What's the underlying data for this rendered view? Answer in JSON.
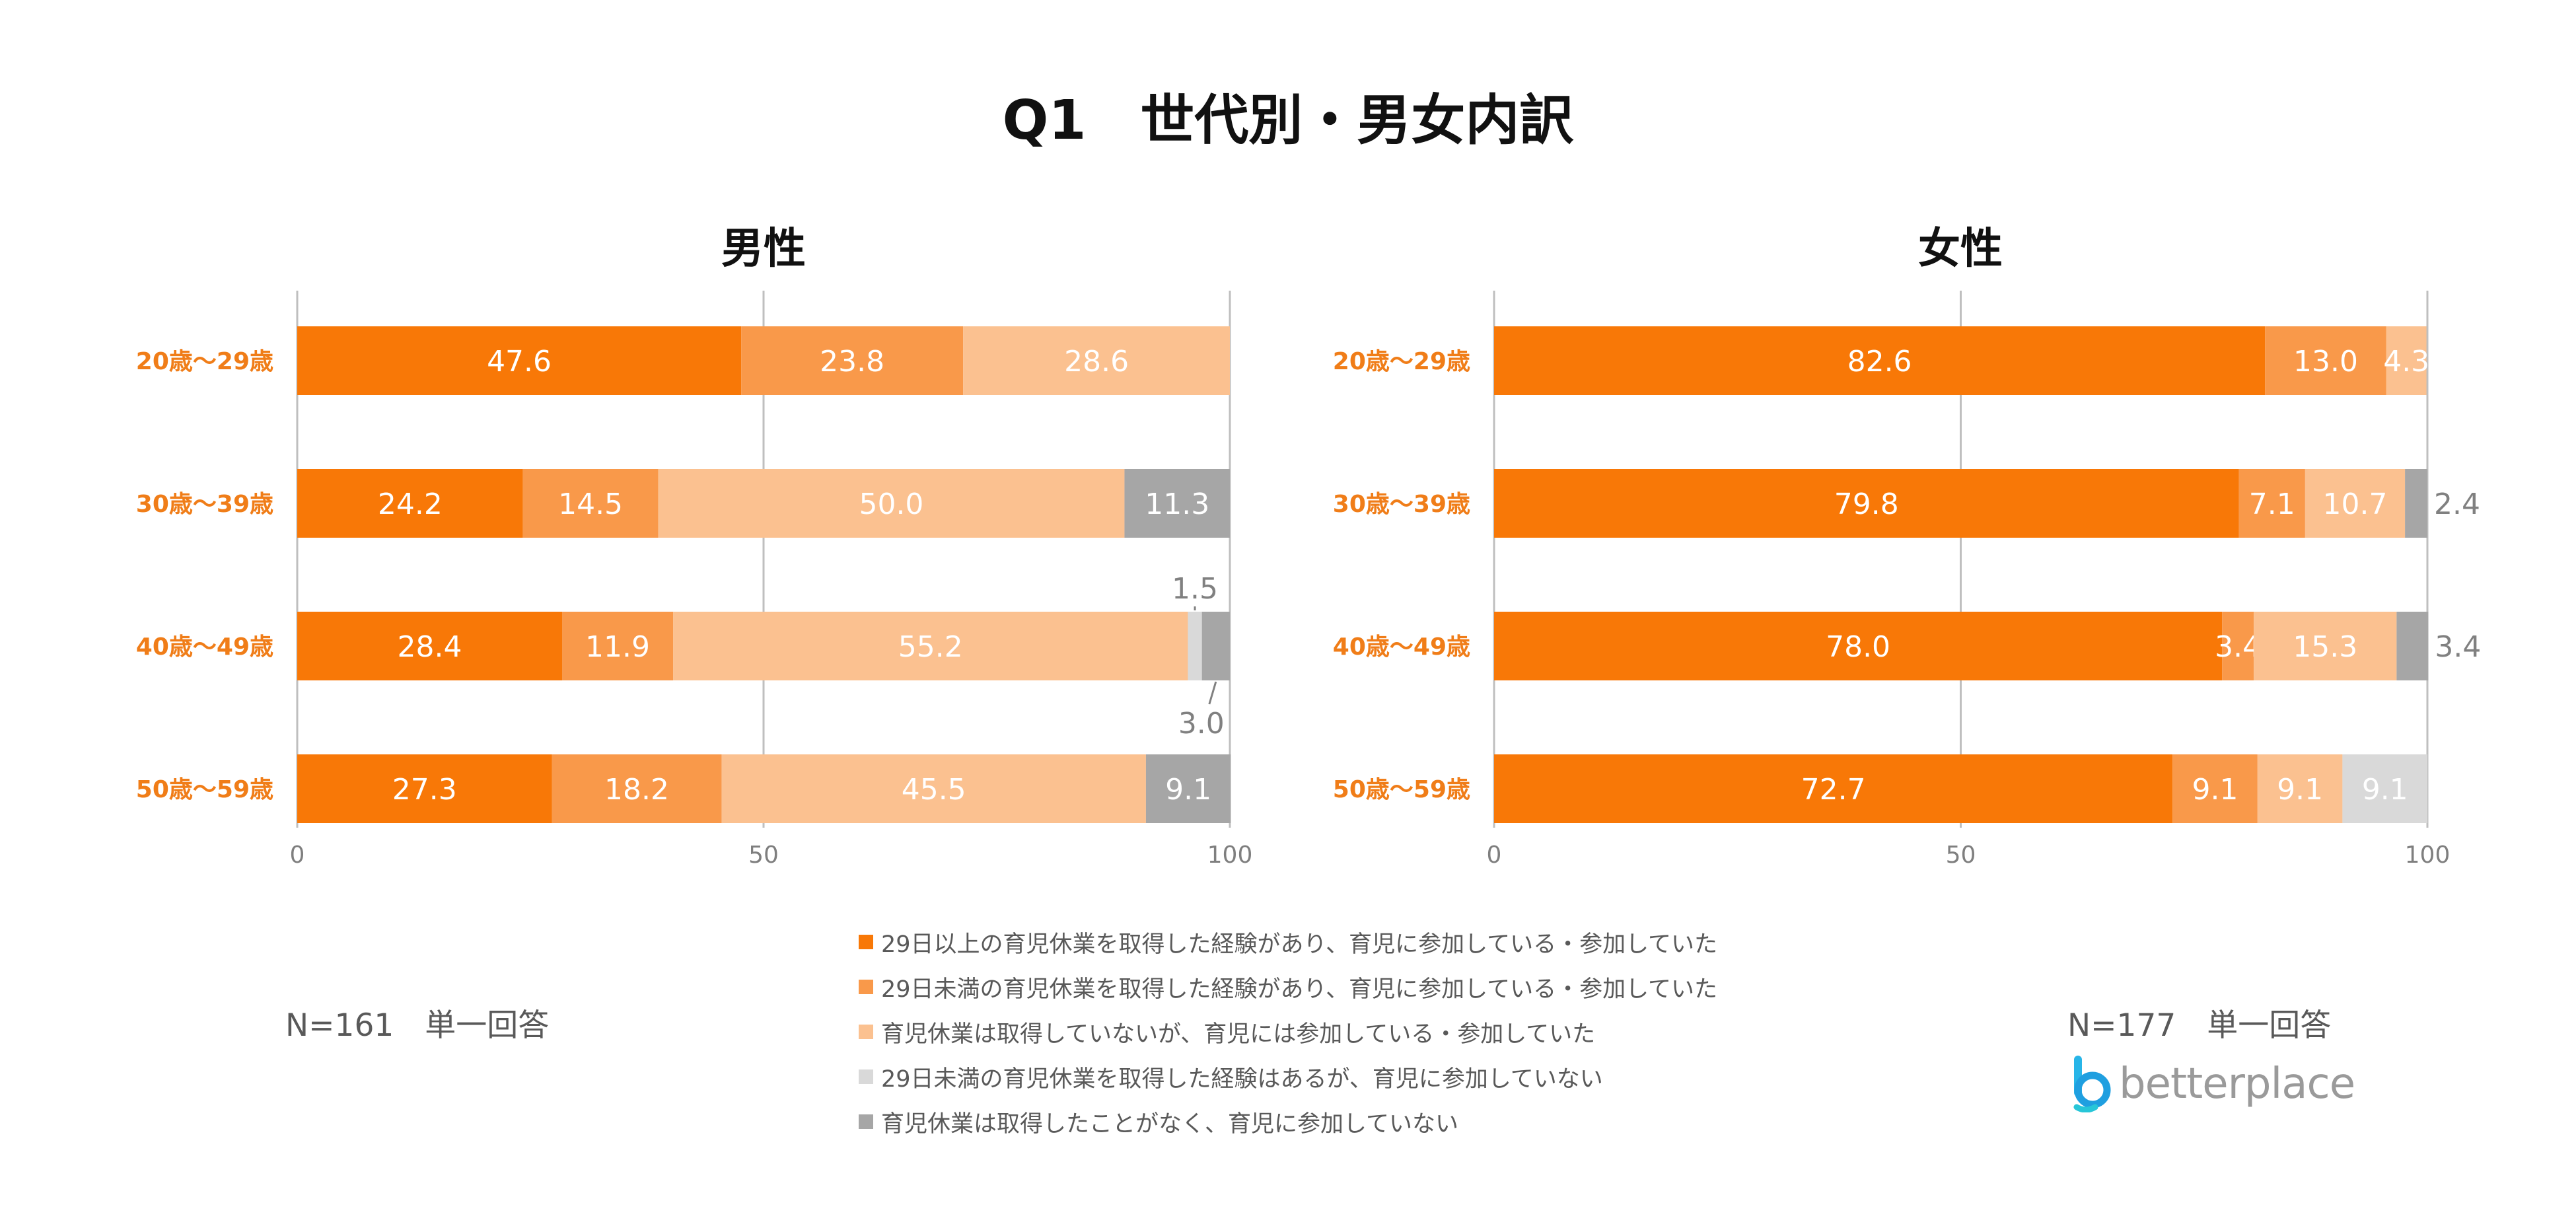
{
  "title": "Q1　世代別・男女内訳",
  "colors": {
    "legend": [
      "#f87807",
      "#f9994a",
      "#fbc190",
      "#d9d9d9",
      "#a6a6a6"
    ],
    "category_label": "#f07d18",
    "axis": "#bfbfbf",
    "outside_label": "#808080"
  },
  "legend": [
    "29日以上の育児休業を取得した経験があり、育児に参加している・参加していた",
    "29日未満の育児休業を取得した経験があり、育児に参加している・参加していた",
    "育児休業は取得していないが、育児には参加している・参加していた",
    "29日未満の育児休業を取得した経験はあるが、育児に参加していない",
    "育児休業は取得したことがなく、育児に参加していない"
  ],
  "chart_data": [
    {
      "type": "bar",
      "orientation": "horizontal",
      "stacked": true,
      "title": "男性",
      "categories": [
        "20歳～29歳",
        "30歳～39歳",
        "40歳～49歳",
        "50歳～59歳"
      ],
      "xlim": [
        0,
        100
      ],
      "xticks": [
        0,
        50,
        100
      ],
      "grid": true,
      "series": [
        {
          "name": "29日以上の育児休業を取得した経験があり、育児に参加している・参加していた",
          "values": [
            47.6,
            24.2,
            28.4,
            27.3
          ]
        },
        {
          "name": "29日未満の育児休業を取得した経験があり、育児に参加している・参加していた",
          "values": [
            23.8,
            14.5,
            11.9,
            18.2
          ]
        },
        {
          "name": "育児休業は取得していないが、育児には参加している・参加していた",
          "values": [
            28.6,
            50.0,
            55.2,
            45.5
          ]
        },
        {
          "name": "29日未満の育児休業を取得した経験はあるが、育児に参加していない",
          "values": [
            0,
            0,
            1.5,
            0
          ]
        },
        {
          "name": "育児休業は取得したことがなく、育児に参加していない",
          "values": [
            0,
            11.3,
            3.0,
            9.1
          ]
        }
      ],
      "data_labels": [
        [
          "47.6",
          "23.8",
          "28.6",
          "",
          ""
        ],
        [
          "24.2",
          "14.5",
          "50.0",
          "",
          "11.3"
        ],
        [
          "28.4",
          "11.9",
          "55.2",
          "1.5",
          "3.0"
        ],
        [
          "27.3",
          "18.2",
          "45.5",
          "",
          "9.1"
        ]
      ],
      "label_placement": [
        [
          "in",
          "in",
          "in",
          "",
          ""
        ],
        [
          "in",
          "in",
          "in",
          "",
          "in"
        ],
        [
          "in",
          "in",
          "in",
          "above",
          "below"
        ],
        [
          "in",
          "in",
          "in",
          "",
          "in"
        ]
      ],
      "note": "N=161　単一回答"
    },
    {
      "type": "bar",
      "orientation": "horizontal",
      "stacked": true,
      "title": "女性",
      "categories": [
        "20歳～29歳",
        "30歳～39歳",
        "40歳～49歳",
        "50歳～59歳"
      ],
      "xlim": [
        0,
        100
      ],
      "xticks": [
        0,
        50,
        100
      ],
      "grid": true,
      "series": [
        {
          "name": "29日以上の育児休業を取得した経験があり、育児に参加している・参加していた",
          "values": [
            82.6,
            79.8,
            78.0,
            72.7
          ]
        },
        {
          "name": "29日未満の育児休業を取得した経験があり、育児に参加している・参加していた",
          "values": [
            13.0,
            7.1,
            3.4,
            9.1
          ]
        },
        {
          "name": "育児休業は取得していないが、育児には参加している・参加していた",
          "values": [
            4.3,
            10.7,
            15.3,
            9.1
          ]
        },
        {
          "name": "29日未満の育児休業を取得した経験はあるが、育児に参加していない",
          "values": [
            0,
            0,
            0,
            9.1
          ]
        },
        {
          "name": "育児休業は取得したことがなく、育児に参加していない",
          "values": [
            0,
            2.4,
            3.4,
            0
          ]
        }
      ],
      "data_labels": [
        [
          "82.6",
          "13.0",
          "4.3",
          "",
          ""
        ],
        [
          "79.8",
          "7.1",
          "10.7",
          "",
          "2.4"
        ],
        [
          "78.0",
          "3.4",
          "15.3",
          "",
          "3.4"
        ],
        [
          "72.7",
          "9.1",
          "9.1",
          "9.1",
          ""
        ]
      ],
      "label_placement": [
        [
          "in",
          "in",
          "in",
          "",
          ""
        ],
        [
          "in",
          "in",
          "in",
          "",
          "right"
        ],
        [
          "in",
          "in",
          "in",
          "",
          "right"
        ],
        [
          "in",
          "in",
          "in",
          "in",
          ""
        ]
      ],
      "note": "N=177　単一回答"
    }
  ],
  "brand": "betterplace"
}
